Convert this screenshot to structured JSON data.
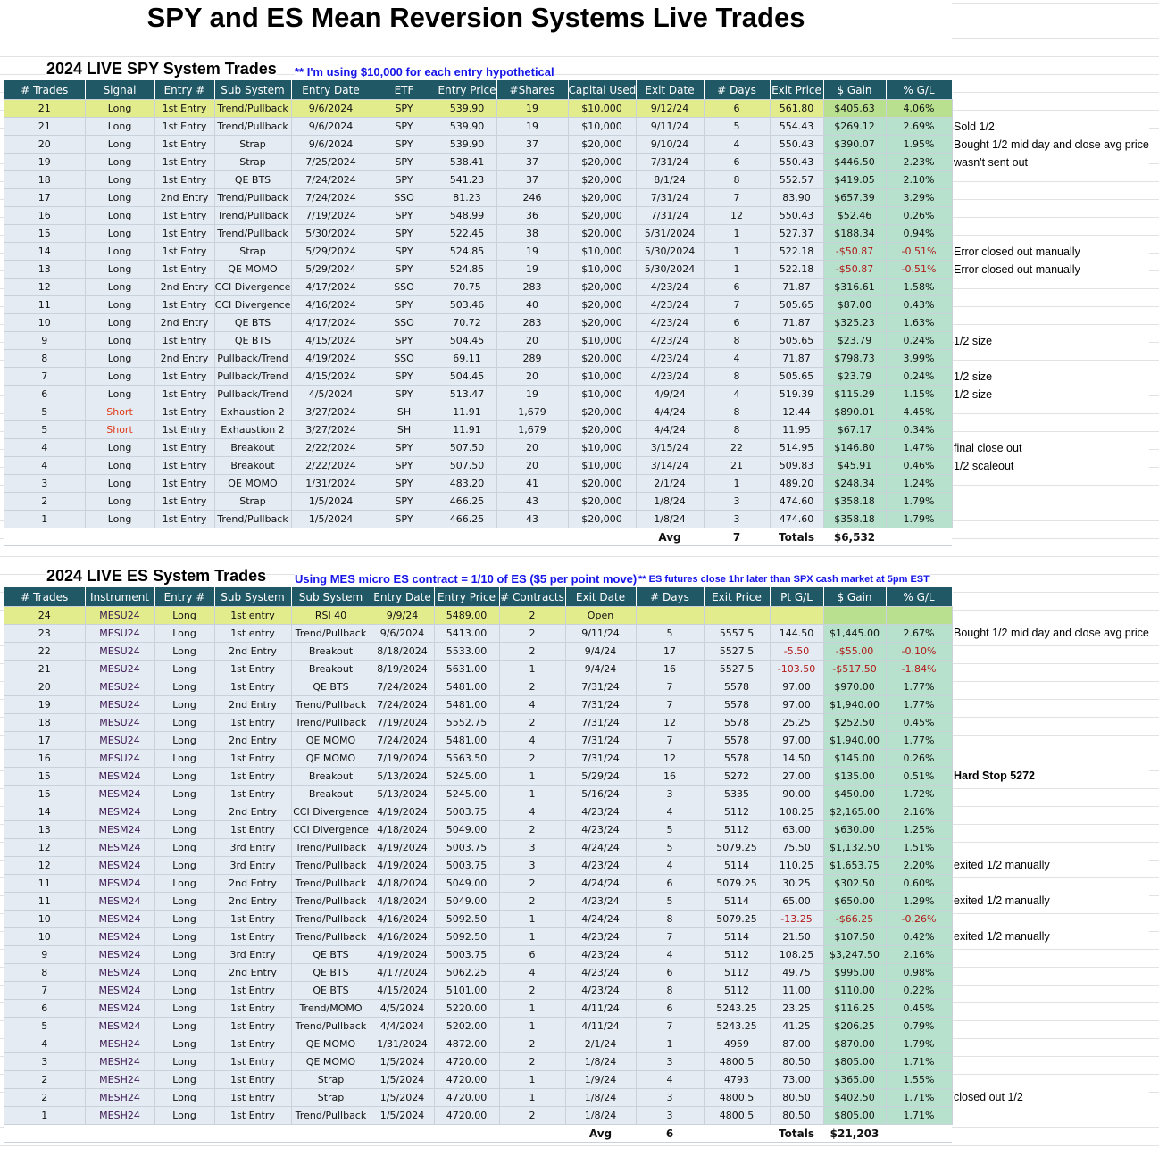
{
  "title": "SPY and ES Mean Reversion Systems Live Trades",
  "colors": {
    "header_bg": "#215866",
    "row_bg": "#e4ebf2",
    "gain_bg": "#b7e1cd",
    "highlight": "#e3ec8d",
    "negative": "#b21a1a"
  },
  "spy": {
    "section_title": "2024 LIVE SPY System Trades",
    "note": "** I'm using $10,000 for each entry hypothetical",
    "headers": [
      "# Trades",
      "Signal",
      "Entry #",
      "Sub System",
      "Entry Date",
      "ETF",
      "Entry Price",
      "#Shares",
      "Capital Used",
      "Exit Date",
      "# Days",
      "Exit Price",
      "$ Gain",
      "% G/L"
    ],
    "rows": [
      [
        "21",
        "Long",
        "1st Entry",
        "Trend/Pullback",
        "9/6/2024",
        "SPY",
        "539.90",
        "19",
        "$10,000",
        "9/12/24",
        "6",
        "561.80",
        "$405.63",
        "4.06%",
        ""
      ],
      [
        "21",
        "Long",
        "1st Entry",
        "Trend/Pullback",
        "9/6/2024",
        "SPY",
        "539.90",
        "19",
        "$10,000",
        "9/11/24",
        "5",
        "554.43",
        "$269.12",
        "2.69%",
        "Sold 1/2"
      ],
      [
        "20",
        "Long",
        "1st Entry",
        "Strap",
        "9/6/2024",
        "SPY",
        "539.90",
        "37",
        "$20,000",
        "9/10/24",
        "4",
        "550.43",
        "$390.07",
        "1.95%",
        "Bought 1/2 mid day and close avg price"
      ],
      [
        "19",
        "Long",
        "1st Entry",
        "Strap",
        "7/25/2024",
        "SPY",
        "538.41",
        "37",
        "$20,000",
        "7/31/24",
        "6",
        "550.43",
        "$446.50",
        "2.23%",
        "wasn't sent out"
      ],
      [
        "18",
        "Long",
        "1st Entry",
        "QE BTS",
        "7/24/2024",
        "SPY",
        "541.23",
        "37",
        "$20,000",
        "8/1/24",
        "8",
        "552.57",
        "$419.05",
        "2.10%",
        ""
      ],
      [
        "17",
        "Long",
        "2nd Entry",
        "Trend/Pullback",
        "7/24/2024",
        "SSO",
        "81.23",
        "246",
        "$20,000",
        "7/31/24",
        "7",
        "83.90",
        "$657.39",
        "3.29%",
        ""
      ],
      [
        "16",
        "Long",
        "1st Entry",
        "Trend/Pullback",
        "7/19/2024",
        "SPY",
        "548.99",
        "36",
        "$20,000",
        "7/31/24",
        "12",
        "550.43",
        "$52.46",
        "0.26%",
        ""
      ],
      [
        "15",
        "Long",
        "1st Entry",
        "Trend/Pullback",
        "5/30/2024",
        "SPY",
        "522.45",
        "38",
        "$20,000",
        "5/31/2024",
        "1",
        "527.37",
        "$188.34",
        "0.94%",
        ""
      ],
      [
        "14",
        "Long",
        "1st Entry",
        "Strap",
        "5/29/2024",
        "SPY",
        "524.85",
        "19",
        "$10,000",
        "5/30/2024",
        "1",
        "522.18",
        "-$50.87",
        "-0.51%",
        "Error closed out manually"
      ],
      [
        "13",
        "Long",
        "1st Entry",
        "QE MOMO",
        "5/29/2024",
        "SPY",
        "524.85",
        "19",
        "$10,000",
        "5/30/2024",
        "1",
        "522.18",
        "-$50.87",
        "-0.51%",
        "Error closed out manually"
      ],
      [
        "12",
        "Long",
        "2nd Entry",
        "CCI Divergence",
        "4/17/2024",
        "SSO",
        "70.75",
        "283",
        "$20,000",
        "4/23/24",
        "6",
        "71.87",
        "$316.61",
        "1.58%",
        ""
      ],
      [
        "11",
        "Long",
        "1st Entry",
        "CCI Divergence",
        "4/16/2024",
        "SPY",
        "503.46",
        "40",
        "$20,000",
        "4/23/24",
        "7",
        "505.65",
        "$87.00",
        "0.43%",
        ""
      ],
      [
        "10",
        "Long",
        "2nd Entry",
        "QE BTS",
        "4/17/2024",
        "SSO",
        "70.72",
        "283",
        "$20,000",
        "4/23/24",
        "6",
        "71.87",
        "$325.23",
        "1.63%",
        ""
      ],
      [
        "9",
        "Long",
        "1st Entry",
        "QE BTS",
        "4/15/2024",
        "SPY",
        "504.45",
        "20",
        "$10,000",
        "4/23/24",
        "8",
        "505.65",
        "$23.79",
        "0.24%",
        "1/2 size"
      ],
      [
        "8",
        "Long",
        "2nd Entry",
        "Pullback/Trend",
        "4/19/2024",
        "SSO",
        "69.11",
        "289",
        "$20,000",
        "4/23/24",
        "4",
        "71.87",
        "$798.73",
        "3.99%",
        ""
      ],
      [
        "7",
        "Long",
        "1st Entry",
        "Pullback/Trend",
        "4/15/2024",
        "SPY",
        "504.45",
        "20",
        "$10,000",
        "4/23/24",
        "8",
        "505.65",
        "$23.79",
        "0.24%",
        "1/2 size"
      ],
      [
        "6",
        "Long",
        "1st Entry",
        "Pullback/Trend",
        "4/5/2024",
        "SPY",
        "513.47",
        "19",
        "$10,000",
        "4/9/24",
        "4",
        "519.39",
        "$115.29",
        "1.15%",
        "1/2 size"
      ],
      [
        "5",
        "Short",
        "1st Entry",
        "Exhaustion 2",
        "3/27/2024",
        "SH",
        "11.91",
        "1,679",
        "$20,000",
        "4/4/24",
        "8",
        "12.44",
        "$890.01",
        "4.45%",
        ""
      ],
      [
        "5",
        "Short",
        "1st Entry",
        "Exhaustion 2",
        "3/27/2024",
        "SH",
        "11.91",
        "1,679",
        "$20,000",
        "4/4/24",
        "8",
        "11.95",
        "$67.17",
        "0.34%",
        ""
      ],
      [
        "4",
        "Long",
        "1st Entry",
        "Breakout",
        "2/22/2024",
        "SPY",
        "507.50",
        "20",
        "$10,000",
        "3/15/24",
        "22",
        "514.95",
        "$146.80",
        "1.47%",
        "final close out"
      ],
      [
        "4",
        "Long",
        "1st Entry",
        "Breakout",
        "2/22/2024",
        "SPY",
        "507.50",
        "20",
        "$10,000",
        "3/14/24",
        "21",
        "509.83",
        "$45.91",
        "0.46%",
        "1/2 scaleout"
      ],
      [
        "3",
        "Long",
        "1st Entry",
        "QE MOMO",
        "1/31/2024",
        "SPY",
        "483.20",
        "41",
        "$20,000",
        "2/1/24",
        "1",
        "489.20",
        "$248.34",
        "1.24%",
        ""
      ],
      [
        "2",
        "Long",
        "1st Entry",
        "Strap",
        "1/5/2024",
        "SPY",
        "466.25",
        "43",
        "$20,000",
        "1/8/24",
        "3",
        "474.60",
        "$358.18",
        "1.79%",
        ""
      ],
      [
        "1",
        "Long",
        "1st Entry",
        "Trend/Pullback",
        "1/5/2024",
        "SPY",
        "466.25",
        "43",
        "$20,000",
        "1/8/24",
        "3",
        "474.60",
        "$358.18",
        "1.79%",
        ""
      ]
    ],
    "footer": {
      "avg_label": "Avg",
      "avg_days": "7",
      "totals_label": "Totals",
      "total_gain": "$6,532"
    }
  },
  "es": {
    "section_title": "2024 LIVE ES System Trades",
    "note": "Using MES micro ES contract = 1/10 of ES ($5 per point move)",
    "note2": "** ES futures close 1hr later than SPX cash market at 5pm EST",
    "headers": [
      "# Trades",
      "Instrument",
      "Entry #",
      "Sub System",
      "Sub System",
      "Entry Date",
      "Entry Price",
      "# Contracts",
      "Exit Date",
      "# Days",
      "Exit Price",
      "Pt G/L",
      "$ Gain",
      "% G/L"
    ],
    "rows": [
      [
        "24",
        "MESU24",
        "Long",
        "1st entry",
        "RSI 40",
        "9/9/24",
        "5489.00",
        "2",
        "Open",
        "",
        "",
        "",
        "",
        "",
        ""
      ],
      [
        "23",
        "MESU24",
        "Long",
        "1st entry",
        "Trend/Pullback",
        "9/6/2024",
        "5413.00",
        "2",
        "9/11/24",
        "5",
        "5557.5",
        "144.50",
        "$1,445.00",
        "2.67%",
        "Bought 1/2 mid day and close avg price"
      ],
      [
        "22",
        "MESU24",
        "Long",
        "2nd Entry",
        "Breakout",
        "8/18/2024",
        "5533.00",
        "2",
        "9/4/24",
        "17",
        "5527.5",
        "-5.50",
        "-$55.00",
        "-0.10%",
        ""
      ],
      [
        "21",
        "MESU24",
        "Long",
        "1st Entry",
        "Breakout",
        "8/19/2024",
        "5631.00",
        "1",
        "9/4/24",
        "16",
        "5527.5",
        "-103.50",
        "-$517.50",
        "-1.84%",
        ""
      ],
      [
        "20",
        "MESU24",
        "Long",
        "1st Entry",
        "QE BTS",
        "7/24/2024",
        "5481.00",
        "2",
        "7/31/24",
        "7",
        "5578",
        "97.00",
        "$970.00",
        "1.77%",
        ""
      ],
      [
        "19",
        "MESU24",
        "Long",
        "2nd Entry",
        "Trend/Pullback",
        "7/24/2024",
        "5481.00",
        "4",
        "7/31/24",
        "7",
        "5578",
        "97.00",
        "$1,940.00",
        "1.77%",
        ""
      ],
      [
        "18",
        "MESU24",
        "Long",
        "1st Entry",
        "Trend/Pullback",
        "7/19/2024",
        "5552.75",
        "2",
        "7/31/24",
        "12",
        "5578",
        "25.25",
        "$252.50",
        "0.45%",
        ""
      ],
      [
        "17",
        "MESU24",
        "Long",
        "2nd Entry",
        "QE MOMO",
        "7/24/2024",
        "5481.00",
        "4",
        "7/31/24",
        "7",
        "5578",
        "97.00",
        "$1,940.00",
        "1.77%",
        ""
      ],
      [
        "16",
        "MESU24",
        "Long",
        "1st Entry",
        "QE MOMO",
        "7/19/2024",
        "5563.50",
        "2",
        "7/31/24",
        "12",
        "5578",
        "14.50",
        "$145.00",
        "0.26%",
        ""
      ],
      [
        "15",
        "MESM24",
        "Long",
        "1st Entry",
        "Breakout",
        "5/13/2024",
        "5245.00",
        "1",
        "5/29/24",
        "16",
        "5272",
        "27.00",
        "$135.00",
        "0.51%",
        "Hard Stop 5272"
      ],
      [
        "15",
        "MESM24",
        "Long",
        "1st Entry",
        "Breakout",
        "5/13/2024",
        "5245.00",
        "1",
        "5/16/24",
        "3",
        "5335",
        "90.00",
        "$450.00",
        "1.72%",
        ""
      ],
      [
        "14",
        "MESM24",
        "Long",
        "2nd Entry",
        "CCI Divergence",
        "4/19/2024",
        "5003.75",
        "4",
        "4/23/24",
        "4",
        "5112",
        "108.25",
        "$2,165.00",
        "2.16%",
        ""
      ],
      [
        "13",
        "MESM24",
        "Long",
        "1st Entry",
        "CCI Divergence",
        "4/18/2024",
        "5049.00",
        "2",
        "4/23/24",
        "5",
        "5112",
        "63.00",
        "$630.00",
        "1.25%",
        ""
      ],
      [
        "12",
        "MESM24",
        "Long",
        "3rd Entry",
        "Trend/Pullback",
        "4/19/2024",
        "5003.75",
        "3",
        "4/24/24",
        "5",
        "5079.25",
        "75.50",
        "$1,132.50",
        "1.51%",
        ""
      ],
      [
        "12",
        "MESM24",
        "Long",
        "3rd Entry",
        "Trend/Pullback",
        "4/19/2024",
        "5003.75",
        "3",
        "4/23/24",
        "4",
        "5114",
        "110.25",
        "$1,653.75",
        "2.20%",
        "exited 1/2 manually"
      ],
      [
        "11",
        "MESM24",
        "Long",
        "2nd Entry",
        "Trend/Pullback",
        "4/18/2024",
        "5049.00",
        "2",
        "4/24/24",
        "6",
        "5079.25",
        "30.25",
        "$302.50",
        "0.60%",
        ""
      ],
      [
        "11",
        "MESM24",
        "Long",
        "2nd Entry",
        "Trend/Pullback",
        "4/18/2024",
        "5049.00",
        "2",
        "4/23/24",
        "5",
        "5114",
        "65.00",
        "$650.00",
        "1.29%",
        "exited 1/2 manually"
      ],
      [
        "10",
        "MESM24",
        "Long",
        "1st Entry",
        "Trend/Pullback",
        "4/16/2024",
        "5092.50",
        "1",
        "4/24/24",
        "8",
        "5079.25",
        "-13.25",
        "-$66.25",
        "-0.26%",
        ""
      ],
      [
        "10",
        "MESM24",
        "Long",
        "1st Entry",
        "Trend/Pullback",
        "4/16/2024",
        "5092.50",
        "1",
        "4/23/24",
        "7",
        "5114",
        "21.50",
        "$107.50",
        "0.42%",
        "exited 1/2 manually"
      ],
      [
        "9",
        "MESM24",
        "Long",
        "3rd Entry",
        "QE BTS",
        "4/19/2024",
        "5003.75",
        "6",
        "4/23/24",
        "4",
        "5112",
        "108.25",
        "$3,247.50",
        "2.16%",
        ""
      ],
      [
        "8",
        "MESM24",
        "Long",
        "2nd Entry",
        "QE BTS",
        "4/17/2024",
        "5062.25",
        "4",
        "4/23/24",
        "6",
        "5112",
        "49.75",
        "$995.00",
        "0.98%",
        ""
      ],
      [
        "7",
        "MESM24",
        "Long",
        "1st Entry",
        "QE BTS",
        "4/15/2024",
        "5101.00",
        "2",
        "4/23/24",
        "8",
        "5112",
        "11.00",
        "$110.00",
        "0.22%",
        ""
      ],
      [
        "6",
        "MESM24",
        "Long",
        "1st Entry",
        "Trend/MOMO",
        "4/5/2024",
        "5220.00",
        "1",
        "4/11/24",
        "6",
        "5243.25",
        "23.25",
        "$116.25",
        "0.45%",
        ""
      ],
      [
        "5",
        "MESM24",
        "Long",
        "1st Entry",
        "Trend/Pullback",
        "4/4/2024",
        "5202.00",
        "1",
        "4/11/24",
        "7",
        "5243.25",
        "41.25",
        "$206.25",
        "0.79%",
        ""
      ],
      [
        "4",
        "MESH24",
        "Long",
        "1st Entry",
        "QE MOMO",
        "1/31/2024",
        "4872.00",
        "2",
        "2/1/24",
        "1",
        "4959",
        "87.00",
        "$870.00",
        "1.79%",
        ""
      ],
      [
        "3",
        "MESH24",
        "Long",
        "1st Entry",
        "QE MOMO",
        "1/5/2024",
        "4720.00",
        "2",
        "1/8/24",
        "3",
        "4800.5",
        "80.50",
        "$805.00",
        "1.71%",
        ""
      ],
      [
        "2",
        "MESH24",
        "Long",
        "1st Entry",
        "Strap",
        "1/5/2024",
        "4720.00",
        "1",
        "1/9/24",
        "4",
        "4793",
        "73.00",
        "$365.00",
        "1.55%",
        ""
      ],
      [
        "2",
        "MESH24",
        "Long",
        "1st Entry",
        "Strap",
        "1/5/2024",
        "4720.00",
        "1",
        "1/8/24",
        "3",
        "4800.5",
        "80.50",
        "$402.50",
        "1.71%",
        "closed out 1/2"
      ],
      [
        "1",
        "MESH24",
        "Long",
        "1st Entry",
        "Trend/Pullback",
        "1/5/2024",
        "4720.00",
        "2",
        "1/8/24",
        "3",
        "4800.5",
        "80.50",
        "$805.00",
        "1.71%",
        ""
      ]
    ],
    "footer": {
      "avg_label": "Avg",
      "avg_days": "6",
      "totals_label": "Totals",
      "total_gain": "$21,203"
    }
  }
}
